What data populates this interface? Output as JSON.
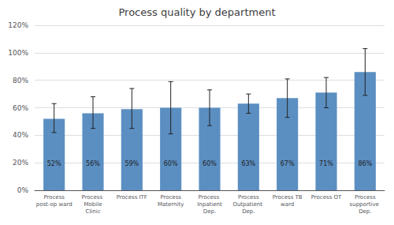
{
  "chart_data": {
    "type": "bar",
    "title": "Process quality by department",
    "categories": [
      "Process\npost-op ward",
      "Process Mobile\nClinic",
      "Process ITF",
      "Process\nMaternity",
      "Process Inpatient\nDep.",
      "Process\nOutpatient Dep.",
      "Process TB\nward",
      "Process OT",
      "Process\nsupportive Dep."
    ],
    "values": [
      52,
      56,
      59,
      60,
      60,
      63,
      67,
      71,
      86
    ],
    "value_labels": [
      "52%",
      "56%",
      "59%",
      "60%",
      "60%",
      "63%",
      "67%",
      "71%",
      "86%"
    ],
    "data_labels": true,
    "errors_low": [
      10,
      11,
      14,
      19,
      13,
      7,
      14,
      11,
      17
    ],
    "errors_high": [
      11,
      12,
      15,
      19,
      13,
      7,
      14,
      11,
      17
    ],
    "color": "#5b8fc2",
    "ylim": [
      0,
      120
    ],
    "yticks": [
      {
        "value": 0,
        "label": "0%"
      },
      {
        "value": 20,
        "label": "20%"
      },
      {
        "value": 40,
        "label": "40%"
      },
      {
        "value": 60,
        "label": "60%"
      },
      {
        "value": 80,
        "label": "80%"
      },
      {
        "value": 100,
        "label": "100%"
      },
      {
        "value": 120,
        "label": "120%"
      }
    ],
    "grid": true
  }
}
